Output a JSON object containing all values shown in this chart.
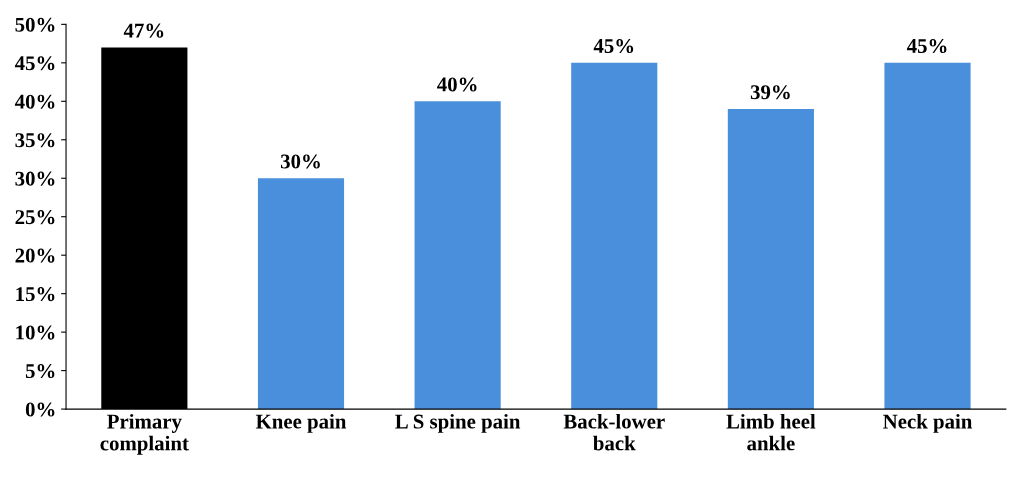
{
  "chart_data": {
    "type": "bar",
    "categories": [
      "Primary\ncomplaint",
      "Knee pain",
      "L S spine pain",
      "Back-lower\nback",
      "Limb heel\nankle",
      "Neck pain"
    ],
    "values": [
      47,
      30,
      40,
      45,
      39,
      45
    ],
    "colors": [
      "#000000",
      "#4a8fdb",
      "#4a8fdb",
      "#4a8fdb",
      "#4a8fdb",
      "#4a8fdb"
    ],
    "value_labels": [
      "47%",
      "30%",
      "40%",
      "45%",
      "39%",
      "45%"
    ],
    "ylim": [
      0,
      50
    ],
    "yticks": [
      {
        "value": 0,
        "label": "0%"
      },
      {
        "value": 5,
        "label": "5%"
      },
      {
        "value": 10,
        "label": "10%"
      },
      {
        "value": 15,
        "label": "15%"
      },
      {
        "value": 20,
        "label": "20%"
      },
      {
        "value": 25,
        "label": "25%"
      },
      {
        "value": 30,
        "label": "30%"
      },
      {
        "value": 35,
        "label": "35%"
      },
      {
        "value": 40,
        "label": "40%"
      },
      {
        "value": 45,
        "label": "45%"
      },
      {
        "value": 50,
        "label": "50%"
      }
    ],
    "grid": false,
    "legend": false
  }
}
